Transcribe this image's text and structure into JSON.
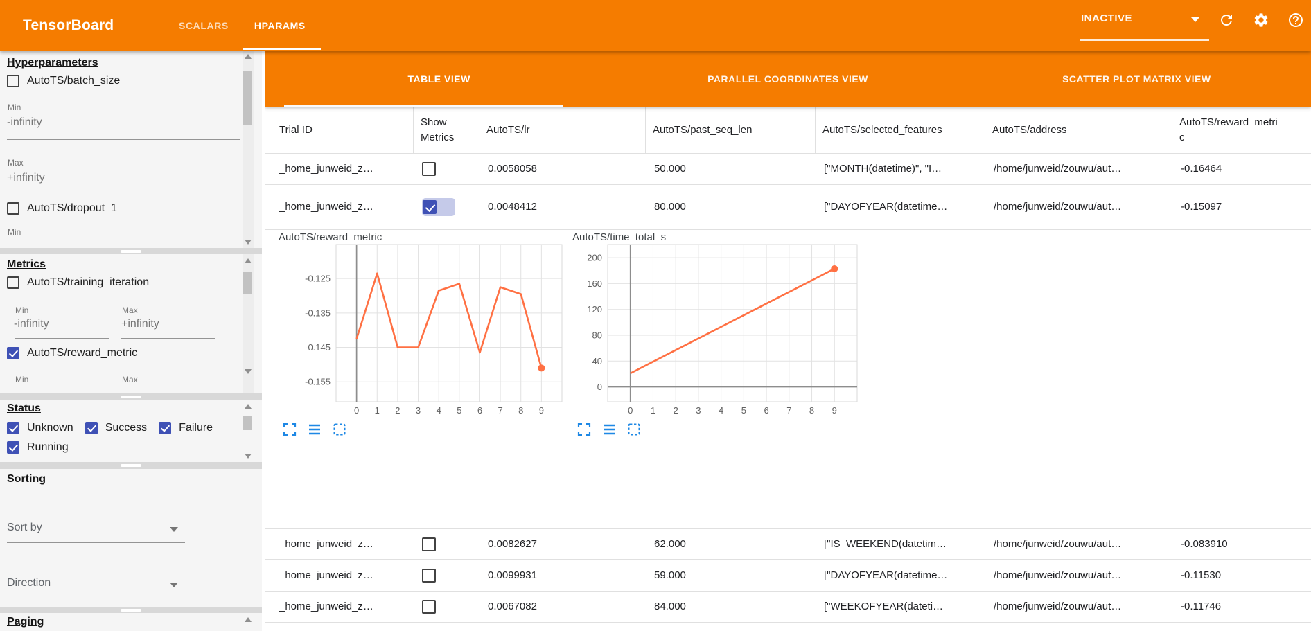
{
  "header": {
    "title": "TensorBoard",
    "nav_tabs": [
      {
        "label": "SCALARS",
        "active": false
      },
      {
        "label": "HPARAMS",
        "active": true
      }
    ],
    "run_status": "INACTIVE",
    "icons": [
      "dropdown-arrow-icon",
      "refresh-icon",
      "settings-gear-icon",
      "help-icon"
    ]
  },
  "sidebar": {
    "hyperparameters": {
      "title": "Hyperparameters",
      "items": [
        {
          "label": "AutoTS/batch_size",
          "checked": false
        },
        {
          "label": "AutoTS/dropout_1",
          "checked": false
        }
      ],
      "min_label": "Min",
      "max_label": "Max",
      "min_value": "-infinity",
      "max_value": "+infinity"
    },
    "metrics": {
      "title": "Metrics",
      "items": [
        {
          "label": "AutoTS/training_iteration",
          "checked": false
        },
        {
          "label": "AutoTS/reward_metric",
          "checked": true
        }
      ],
      "min_label": "Min",
      "max_label": "Max",
      "min_value": "-infinity",
      "max_value": "+infinity"
    },
    "status": {
      "title": "Status",
      "items": [
        {
          "label": "Unknown",
          "checked": true
        },
        {
          "label": "Success",
          "checked": true
        },
        {
          "label": "Failure",
          "checked": true
        },
        {
          "label": "Running",
          "checked": true
        }
      ]
    },
    "sorting": {
      "title": "Sorting",
      "sort_by_label": "Sort by",
      "direction_label": "Direction"
    },
    "paging": {
      "title": "Paging"
    }
  },
  "main": {
    "view_tabs": [
      {
        "label": "TABLE VIEW",
        "active": true
      },
      {
        "label": "PARALLEL COORDINATES VIEW",
        "active": false
      },
      {
        "label": "SCATTER PLOT MATRIX VIEW",
        "active": false
      }
    ],
    "table": {
      "columns": [
        "Trial ID",
        "Show Metrics",
        "AutoTS/lr",
        "AutoTS/past_seq_len",
        "AutoTS/selected_features",
        "AutoTS/address",
        "AutoTS/reward_metric"
      ],
      "rows": [
        {
          "trial_id": "_home_junweid_z…",
          "show_metrics": false,
          "lr": "0.0058058",
          "past_seq_len": "50.000",
          "selected_features": "[\"MONTH(datetime)\", \"I…",
          "address": "/home/junweid/zouwu/aut…",
          "reward_metric": "-0.16464"
        },
        {
          "trial_id": "_home_junweid_z…",
          "show_metrics": true,
          "lr": "0.0048412",
          "past_seq_len": "80.000",
          "selected_features": "[\"DAYOFYEAR(datetime…",
          "address": "/home/junweid/zouwu/aut…",
          "reward_metric": "-0.15097"
        },
        {
          "trial_id": "_home_junweid_z…",
          "show_metrics": false,
          "lr": "0.0082627",
          "past_seq_len": "62.000",
          "selected_features": "[\"IS_WEEKEND(datetim…",
          "address": "/home/junweid/zouwu/aut…",
          "reward_metric": "-0.083910"
        },
        {
          "trial_id": "_home_junweid_z…",
          "show_metrics": false,
          "lr": "0.0099931",
          "past_seq_len": "59.000",
          "selected_features": "[\"DAYOFYEAR(datetime…",
          "address": "/home/junweid/zouwu/aut…",
          "reward_metric": "-0.11530"
        },
        {
          "trial_id": "_home_junweid_z…",
          "show_metrics": false,
          "lr": "0.0067082",
          "past_seq_len": "84.000",
          "selected_features": "[\"WEEKOFYEAR(dateti…",
          "address": "/home/junweid/zouwu/aut…",
          "reward_metric": "-0.11746"
        }
      ]
    },
    "chart_toolbar_icons": [
      "expand-icon",
      "list-icon",
      "marquee-selection-icon"
    ]
  },
  "chart_data": [
    {
      "type": "line",
      "title": "AutoTS/reward_metric",
      "xlabel": "",
      "ylabel": "",
      "x": [
        0,
        1,
        2,
        3,
        4,
        5,
        6,
        7,
        8,
        9
      ],
      "values": [
        -0.1425,
        -0.1235,
        -0.145,
        -0.145,
        -0.1285,
        -0.1265,
        -0.1465,
        -0.1275,
        -0.1295,
        -0.151
      ],
      "x_ticks": [
        0,
        1,
        2,
        3,
        4,
        5,
        6,
        7,
        8,
        9
      ],
      "y_ticks": [
        {
          "v": -0.125,
          "label": "-0.125"
        },
        {
          "v": -0.135,
          "label": "-0.135"
        },
        {
          "v": -0.145,
          "label": "-0.145"
        },
        {
          "v": -0.155,
          "label": "-0.155"
        }
      ],
      "xlim": [
        -1,
        10
      ],
      "ylim": [
        -0.1608,
        -0.1151
      ],
      "grid": true,
      "legend": "none",
      "zero_x_axis": true,
      "zero_y_axis": false,
      "endpoint_dot": true,
      "line_color": "#ff7043"
    },
    {
      "type": "line",
      "title": "AutoTS/time_total_s",
      "xlabel": "",
      "ylabel": "",
      "x": [
        0,
        1,
        2,
        3,
        4,
        5,
        6,
        7,
        8,
        9
      ],
      "values": [
        21,
        39,
        57,
        75,
        93,
        111,
        129,
        147,
        165,
        183
      ],
      "x_ticks": [
        0,
        1,
        2,
        3,
        4,
        5,
        6,
        7,
        8,
        9
      ],
      "y_ticks": [
        {
          "v": 200,
          "label": "200"
        },
        {
          "v": 160,
          "label": "160"
        },
        {
          "v": 120,
          "label": "120"
        },
        {
          "v": 80,
          "label": "80"
        },
        {
          "v": 40,
          "label": "40"
        },
        {
          "v": 0,
          "label": "0"
        }
      ],
      "xlim": [
        -1,
        10
      ],
      "ylim": [
        -23,
        220.5
      ],
      "grid": true,
      "legend": "none",
      "zero_x_axis": true,
      "zero_y_axis": true,
      "endpoint_dot": true,
      "line_color": "#ff7043"
    }
  ],
  "colors": {
    "accent_orange": "#f57c00",
    "checkbox_blue": "#3f51b5",
    "checkbox_ripple": "#c5cae9",
    "chart_line": "#ff7043",
    "toolbar_icon_blue": "#1e88e5"
  }
}
